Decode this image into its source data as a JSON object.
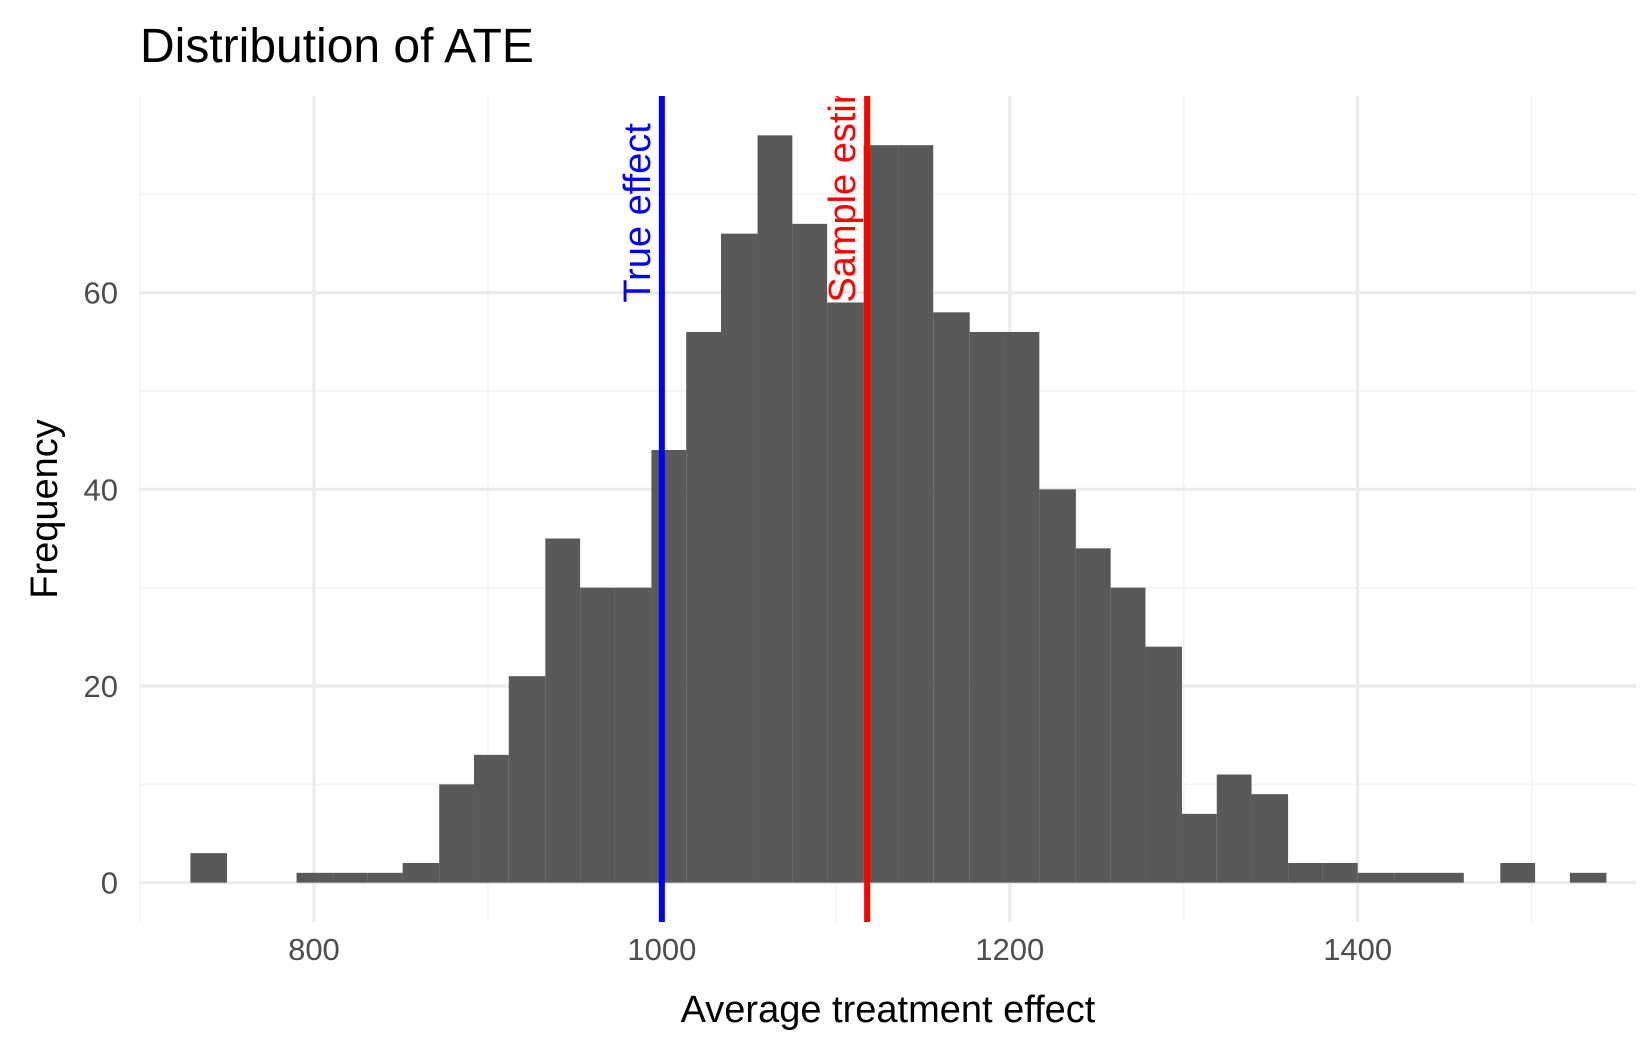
{
  "chart_data": {
    "type": "bar",
    "subtype": "histogram",
    "title": "Distribution of ATE",
    "xlabel": "Average treatment effect",
    "ylabel": "Frequency",
    "xlim": [
      700,
      1560
    ],
    "ylim": [
      -4,
      80
    ],
    "x_ticks": [
      800,
      1000,
      1200,
      1400
    ],
    "y_ticks": [
      0,
      20,
      40,
      60
    ],
    "bin_width": 20.3,
    "bars": [
      {
        "x0": 729,
        "x1": 750,
        "count": 3
      },
      {
        "x0": 790,
        "x1": 811,
        "count": 1
      },
      {
        "x0": 811,
        "x1": 831,
        "count": 1
      },
      {
        "x0": 831,
        "x1": 851,
        "count": 1
      },
      {
        "x0": 851,
        "x1": 872,
        "count": 2
      },
      {
        "x0": 872,
        "x1": 892,
        "count": 10
      },
      {
        "x0": 892,
        "x1": 912,
        "count": 13
      },
      {
        "x0": 912,
        "x1": 933,
        "count": 21
      },
      {
        "x0": 933,
        "x1": 953,
        "count": 35
      },
      {
        "x0": 953,
        "x1": 973,
        "count": 30
      },
      {
        "x0": 973,
        "x1": 994,
        "count": 30
      },
      {
        "x0": 994,
        "x1": 1014,
        "count": 44
      },
      {
        "x0": 1014,
        "x1": 1034,
        "count": 56
      },
      {
        "x0": 1034,
        "x1": 1055,
        "count": 66
      },
      {
        "x0": 1055,
        "x1": 1075,
        "count": 76
      },
      {
        "x0": 1075,
        "x1": 1095,
        "count": 67
      },
      {
        "x0": 1095,
        "x1": 1116,
        "count": 59
      },
      {
        "x0": 1116,
        "x1": 1136,
        "count": 75
      },
      {
        "x0": 1136,
        "x1": 1156,
        "count": 75
      },
      {
        "x0": 1156,
        "x1": 1177,
        "count": 58
      },
      {
        "x0": 1177,
        "x1": 1197,
        "count": 56
      },
      {
        "x0": 1197,
        "x1": 1217,
        "count": 56
      },
      {
        "x0": 1217,
        "x1": 1238,
        "count": 40
      },
      {
        "x0": 1238,
        "x1": 1258,
        "count": 34
      },
      {
        "x0": 1258,
        "x1": 1278,
        "count": 30
      },
      {
        "x0": 1278,
        "x1": 1299,
        "count": 24
      },
      {
        "x0": 1299,
        "x1": 1319,
        "count": 7
      },
      {
        "x0": 1319,
        "x1": 1339,
        "count": 11
      },
      {
        "x0": 1339,
        "x1": 1360,
        "count": 9
      },
      {
        "x0": 1360,
        "x1": 1380,
        "count": 2
      },
      {
        "x0": 1380,
        "x1": 1400,
        "count": 2
      },
      {
        "x0": 1400,
        "x1": 1421,
        "count": 1
      },
      {
        "x0": 1421,
        "x1": 1441,
        "count": 1
      },
      {
        "x0": 1441,
        "x1": 1461,
        "count": 1
      },
      {
        "x0": 1482,
        "x1": 1502,
        "count": 2
      },
      {
        "x0": 1522,
        "x1": 1543,
        "count": 1
      }
    ],
    "bar_color": "#595959",
    "vlines": [
      {
        "x": 1000,
        "label": "True effect",
        "color": "#0000ff"
      },
      {
        "x": 1118,
        "label": "Sample estimate",
        "color": "#ff0000"
      }
    ],
    "grid": true,
    "legend": "none",
    "grid_major_color": "#ebebeb",
    "grid_minor_color": "#f3f3f3"
  }
}
